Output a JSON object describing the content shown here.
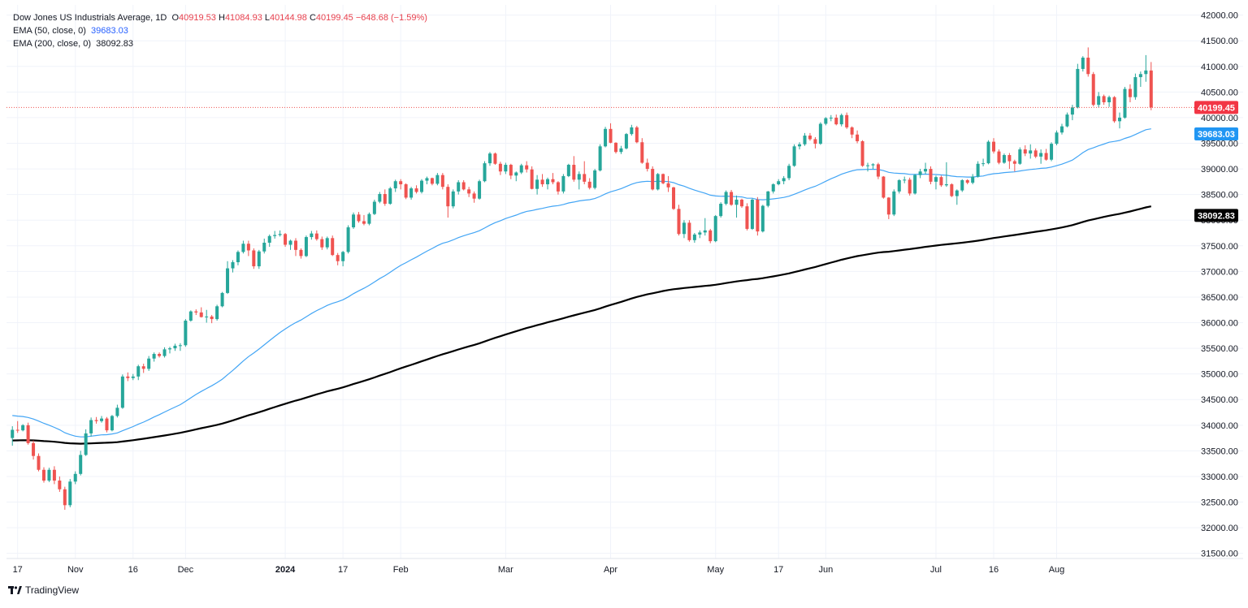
{
  "legend": {
    "title": "Dow Jones US Industrials Average, 1D",
    "open_key": "O",
    "open": "40919.53",
    "high_key": "H",
    "high": "41084.93",
    "low_key": "L",
    "low": "40144.98",
    "close_key": "C",
    "close": "40199.45",
    "change": "−648.68 (−1.59%)",
    "ema50_label": "EMA (50, close, 0)",
    "ema50_value": "39683.03",
    "ema200_label": "EMA (200, close, 0)",
    "ema200_value": "38092.83"
  },
  "brand": {
    "name": "TradingView"
  },
  "colors": {
    "up": "#26a69a",
    "down": "#ef5350",
    "ema50": "#42a5f5",
    "ema200": "#000000",
    "grid": "#f0f3fa",
    "last_price": "#ef5350"
  },
  "chart_data": {
    "type": "candlestick",
    "ylim": [
      31400,
      42200
    ],
    "yticks": [
      31500,
      32000,
      32500,
      33000,
      33500,
      34000,
      34500,
      35000,
      35500,
      36000,
      36500,
      37000,
      37500,
      38000,
      38500,
      39000,
      39500,
      40000,
      40500,
      41000,
      41500,
      42000
    ],
    "ytick_labels": [
      "31500.00",
      "32000.00",
      "32500.00",
      "33000.00",
      "33500.00",
      "34000.00",
      "34500.00",
      "35000.00",
      "35500.00",
      "36000.00",
      "36500.00",
      "37000.00",
      "37500.00",
      "38000.00",
      "38500.00",
      "39000.00",
      "39500.00",
      "40000.00",
      "40500.00",
      "41000.00",
      "41500.00",
      "42000.00"
    ],
    "xticks": [
      {
        "label": "17",
        "index": 1
      },
      {
        "label": "Nov",
        "index": 12
      },
      {
        "label": "16",
        "index": 23
      },
      {
        "label": "Dec",
        "index": 33
      },
      {
        "label": "2024",
        "index": 52,
        "bold": true
      },
      {
        "label": "17",
        "index": 63
      },
      {
        "label": "Feb",
        "index": 74
      },
      {
        "label": "Mar",
        "index": 94
      },
      {
        "label": "Apr",
        "index": 114
      },
      {
        "label": "May",
        "index": 134
      },
      {
        "label": "17",
        "index": 146
      },
      {
        "label": "Jun",
        "index": 155
      },
      {
        "label": "Jul",
        "index": 176
      },
      {
        "label": "16",
        "index": 187
      },
      {
        "label": "Aug",
        "index": 199
      }
    ],
    "price_labels": [
      {
        "name": "last-close",
        "value": 40199.45,
        "text": "40199.45",
        "bg": "#f23645",
        "fg": "#ffffff"
      },
      {
        "name": "ema50",
        "value": 39683.03,
        "text": "39683.03",
        "bg": "#2196f3",
        "fg": "#ffffff"
      },
      {
        "name": "ema200",
        "value": 38092.83,
        "text": "38092.83",
        "bg": "#000000",
        "fg": "#ffffff"
      }
    ],
    "candles": [
      [
        33750,
        33980,
        33600,
        33910
      ],
      [
        33910,
        34080,
        33850,
        33900
      ],
      [
        33900,
        34020,
        33880,
        34000
      ],
      [
        34000,
        34050,
        33620,
        33650
      ],
      [
        33650,
        33700,
        33330,
        33400
      ],
      [
        33400,
        33450,
        33100,
        33130
      ],
      [
        33130,
        33180,
        32880,
        32920
      ],
      [
        32920,
        33170,
        32890,
        33130
      ],
      [
        33130,
        33200,
        32850,
        32920
      ],
      [
        32920,
        33000,
        32700,
        32750
      ],
      [
        32750,
        32800,
        32350,
        32440
      ],
      [
        32440,
        32950,
        32400,
        32900
      ],
      [
        32900,
        33100,
        32850,
        33050
      ],
      [
        33050,
        33500,
        33020,
        33420
      ],
      [
        33420,
        33920,
        33400,
        33840
      ],
      [
        33840,
        34150,
        33780,
        34100
      ],
      [
        34100,
        34160,
        34030,
        34080
      ],
      [
        34080,
        34180,
        34050,
        34130
      ],
      [
        34130,
        34160,
        33860,
        33900
      ],
      [
        33900,
        34200,
        33880,
        34180
      ],
      [
        34180,
        34400,
        34150,
        34340
      ],
      [
        34340,
        34990,
        34320,
        34950
      ],
      [
        34950,
        35030,
        34860,
        34920
      ],
      [
        34920,
        35000,
        34880,
        34950
      ],
      [
        34950,
        35180,
        34880,
        35150
      ],
      [
        35150,
        35200,
        35020,
        35100
      ],
      [
        35100,
        35350,
        35060,
        35300
      ],
      [
        35300,
        35420,
        35240,
        35390
      ],
      [
        35390,
        35420,
        35320,
        35350
      ],
      [
        35350,
        35520,
        35320,
        35480
      ],
      [
        35480,
        35530,
        35400,
        35500
      ],
      [
        35500,
        35590,
        35450,
        35550
      ],
      [
        35550,
        35600,
        35450,
        35560
      ],
      [
        35560,
        36070,
        35530,
        36040
      ],
      [
        36040,
        36240,
        36020,
        36220
      ],
      [
        36220,
        36260,
        36150,
        36200
      ],
      [
        36200,
        36300,
        36100,
        36110
      ],
      [
        36110,
        36250,
        36000,
        36120
      ],
      [
        36120,
        36150,
        35990,
        36070
      ],
      [
        36070,
        36350,
        36040,
        36320
      ],
      [
        36320,
        36600,
        36300,
        36580
      ],
      [
        36580,
        37200,
        36560,
        37060
      ],
      [
        37060,
        37220,
        36980,
        37180
      ],
      [
        37180,
        37410,
        37120,
        37380
      ],
      [
        37380,
        37600,
        37350,
        37540
      ],
      [
        37540,
        37600,
        37300,
        37410
      ],
      [
        37410,
        37450,
        37050,
        37100
      ],
      [
        37100,
        37420,
        37050,
        37390
      ],
      [
        37390,
        37640,
        37350,
        37560
      ],
      [
        37560,
        37720,
        37480,
        37690
      ],
      [
        37690,
        37790,
        37640,
        37710
      ],
      [
        37710,
        37800,
        37680,
        37730
      ],
      [
        37730,
        37750,
        37480,
        37520
      ],
      [
        37520,
        37620,
        37420,
        37600
      ],
      [
        37600,
        37650,
        37300,
        37420
      ],
      [
        37420,
        37450,
        37250,
        37300
      ],
      [
        37300,
        37700,
        37280,
        37670
      ],
      [
        37670,
        37790,
        37620,
        37740
      ],
      [
        37740,
        37800,
        37600,
        37630
      ],
      [
        37630,
        37680,
        37420,
        37470
      ],
      [
        37470,
        37680,
        37430,
        37650
      ],
      [
        37650,
        37700,
        37300,
        37320
      ],
      [
        37320,
        37360,
        37120,
        37200
      ],
      [
        37200,
        37400,
        37100,
        37380
      ],
      [
        37380,
        37900,
        37350,
        37860
      ],
      [
        37860,
        38150,
        37830,
        38110
      ],
      [
        38110,
        38160,
        37950,
        37980
      ],
      [
        37980,
        38100,
        37900,
        37930
      ],
      [
        37930,
        38150,
        37900,
        38120
      ],
      [
        38120,
        38400,
        38100,
        38360
      ],
      [
        38360,
        38550,
        38330,
        38510
      ],
      [
        38510,
        38600,
        38280,
        38320
      ],
      [
        38320,
        38650,
        38300,
        38620
      ],
      [
        38620,
        38790,
        38550,
        38760
      ],
      [
        38760,
        38800,
        38600,
        38700
      ],
      [
        38700,
        38720,
        38410,
        38440
      ],
      [
        38440,
        38650,
        38400,
        38620
      ],
      [
        38620,
        38680,
        38520,
        38550
      ],
      [
        38550,
        38800,
        38520,
        38770
      ],
      [
        38770,
        38850,
        38700,
        38820
      ],
      [
        38820,
        38830,
        38680,
        38710
      ],
      [
        38710,
        38920,
        38680,
        38880
      ],
      [
        38880,
        38920,
        38600,
        38650
      ],
      [
        38650,
        38700,
        38050,
        38270
      ],
      [
        38270,
        38600,
        38230,
        38560
      ],
      [
        38560,
        38780,
        38500,
        38740
      ],
      [
        38740,
        38780,
        38580,
        38600
      ],
      [
        38600,
        38650,
        38450,
        38520
      ],
      [
        38520,
        38560,
        38340,
        38420
      ],
      [
        38420,
        38790,
        38400,
        38760
      ],
      [
        38760,
        39150,
        38740,
        39110
      ],
      [
        39110,
        39330,
        39060,
        39300
      ],
      [
        39300,
        39320,
        39080,
        39100
      ],
      [
        39100,
        39140,
        38880,
        38950
      ],
      [
        38950,
        39120,
        38900,
        39080
      ],
      [
        39080,
        39100,
        38800,
        38870
      ],
      [
        38870,
        38950,
        38760,
        38930
      ],
      [
        38930,
        39100,
        38900,
        39070
      ],
      [
        39070,
        39150,
        38930,
        38990
      ],
      [
        38990,
        39050,
        38600,
        38610
      ],
      [
        38610,
        38880,
        38500,
        38790
      ],
      [
        38790,
        38900,
        38650,
        38700
      ],
      [
        38700,
        38830,
        38600,
        38800
      ],
      [
        38800,
        38920,
        38700,
        38740
      ],
      [
        38740,
        38760,
        38500,
        38560
      ],
      [
        38560,
        38900,
        38520,
        38860
      ],
      [
        38860,
        39100,
        38840,
        39080
      ],
      [
        39080,
        39250,
        38750,
        38790
      ],
      [
        38790,
        38950,
        38600,
        38900
      ],
      [
        38900,
        39150,
        38700,
        38750
      ],
      [
        38750,
        38820,
        38600,
        38630
      ],
      [
        38630,
        39000,
        38600,
        38970
      ],
      [
        38970,
        39480,
        38950,
        39440
      ],
      [
        39440,
        39820,
        39420,
        39780
      ],
      [
        39780,
        39890,
        39500,
        39510
      ],
      [
        39510,
        39520,
        39300,
        39330
      ],
      [
        39330,
        39450,
        39290,
        39400
      ],
      [
        39400,
        39700,
        39380,
        39680
      ],
      [
        39680,
        39860,
        39650,
        39810
      ],
      [
        39810,
        39840,
        39500,
        39520
      ],
      [
        39520,
        39600,
        39100,
        39120
      ],
      [
        39120,
        39200,
        38950,
        39000
      ],
      [
        39000,
        39050,
        38580,
        38600
      ],
      [
        38600,
        38920,
        38580,
        38900
      ],
      [
        38900,
        38910,
        38700,
        38720
      ],
      [
        38720,
        38860,
        38550,
        38640
      ],
      [
        38640,
        38650,
        38200,
        38220
      ],
      [
        38220,
        38300,
        37700,
        37730
      ],
      [
        37730,
        38000,
        37650,
        37950
      ],
      [
        37950,
        38000,
        37580,
        37610
      ],
      [
        37610,
        37750,
        37560,
        37720
      ],
      [
        37720,
        37800,
        37650,
        37760
      ],
      [
        37760,
        38040,
        37700,
        37800
      ],
      [
        37800,
        37830,
        37550,
        37590
      ],
      [
        37590,
        38100,
        37570,
        38080
      ],
      [
        38080,
        38350,
        38050,
        38320
      ],
      [
        38320,
        38580,
        38290,
        38550
      ],
      [
        38550,
        38590,
        38280,
        38300
      ],
      [
        38300,
        38480,
        38050,
        38400
      ],
      [
        38400,
        38420,
        38240,
        38270
      ],
      [
        38270,
        38330,
        37800,
        37830
      ],
      [
        37830,
        38420,
        37810,
        38400
      ],
      [
        38400,
        38450,
        37700,
        37780
      ],
      [
        37780,
        38300,
        37760,
        38280
      ],
      [
        38280,
        38570,
        38250,
        38560
      ],
      [
        38560,
        38720,
        38520,
        38700
      ],
      [
        38700,
        38800,
        38680,
        38760
      ],
      [
        38760,
        38860,
        38700,
        38820
      ],
      [
        38820,
        39100,
        38780,
        39060
      ],
      [
        39060,
        39480,
        39040,
        39440
      ],
      [
        39440,
        39520,
        39380,
        39480
      ],
      [
        39480,
        39700,
        39450,
        39650
      ],
      [
        39650,
        39700,
        39550,
        39580
      ],
      [
        39580,
        39620,
        39400,
        39490
      ],
      [
        39490,
        39910,
        39470,
        39880
      ],
      [
        39880,
        40010,
        39850,
        39990
      ],
      [
        39990,
        40050,
        39930,
        40000
      ],
      [
        40000,
        40060,
        39850,
        39870
      ],
      [
        39870,
        40080,
        39830,
        40050
      ],
      [
        40050,
        40100,
        39780,
        39810
      ],
      [
        39810,
        39830,
        39600,
        39670
      ],
      [
        39670,
        39750,
        39500,
        39540
      ],
      [
        39540,
        39560,
        39040,
        39060
      ],
      [
        39060,
        39120,
        38950,
        39070
      ],
      [
        39070,
        39110,
        39000,
        39090
      ],
      [
        39090,
        39120,
        38800,
        38850
      ],
      [
        38850,
        38860,
        38420,
        38440
      ],
      [
        38440,
        38450,
        38020,
        38110
      ],
      [
        38110,
        38600,
        38080,
        38560
      ],
      [
        38560,
        38800,
        38520,
        38780
      ],
      [
        38780,
        38850,
        38720,
        38790
      ],
      [
        38790,
        38830,
        38480,
        38520
      ],
      [
        38520,
        38900,
        38500,
        38880
      ],
      [
        38880,
        39000,
        38820,
        38950
      ],
      [
        38950,
        39120,
        38900,
        39000
      ],
      [
        39000,
        39050,
        38700,
        38750
      ],
      [
        38750,
        38870,
        38600,
        38840
      ],
      [
        38840,
        38870,
        38650,
        38680
      ],
      [
        38680,
        39130,
        38650,
        38700
      ],
      [
        38700,
        38720,
        38450,
        38470
      ],
      [
        38470,
        38600,
        38300,
        38580
      ],
      [
        38580,
        38800,
        38550,
        38780
      ],
      [
        38780,
        38800,
        38700,
        38730
      ],
      [
        38730,
        38900,
        38700,
        38850
      ],
      [
        38850,
        39150,
        38830,
        39100
      ],
      [
        39100,
        39200,
        39050,
        39110
      ],
      [
        39110,
        39560,
        39090,
        39530
      ],
      [
        39530,
        39600,
        39300,
        39340
      ],
      [
        39340,
        39380,
        39090,
        39120
      ],
      [
        39120,
        39300,
        39100,
        39270
      ],
      [
        39270,
        39310,
        39000,
        39150
      ],
      [
        39150,
        39180,
        38950,
        39100
      ],
      [
        39100,
        39420,
        39080,
        39380
      ],
      [
        39380,
        39460,
        39250,
        39300
      ],
      [
        39300,
        39480,
        39200,
        39360
      ],
      [
        39360,
        39400,
        39210,
        39240
      ],
      [
        39240,
        39380,
        39100,
        39310
      ],
      [
        39310,
        39390,
        39160,
        39180
      ],
      [
        39180,
        39520,
        39150,
        39490
      ],
      [
        39490,
        39750,
        39460,
        39710
      ],
      [
        39710,
        39880,
        39670,
        39830
      ],
      [
        39830,
        40100,
        39810,
        40060
      ],
      [
        40060,
        40250,
        39950,
        40200
      ],
      [
        40200,
        41050,
        40180,
        40950
      ],
      [
        40950,
        41200,
        40900,
        41170
      ],
      [
        41170,
        41370,
        40800,
        40850
      ],
      [
        40850,
        40890,
        40220,
        40250
      ],
      [
        40250,
        40500,
        40200,
        40420
      ],
      [
        40420,
        40450,
        40250,
        40300
      ],
      [
        40300,
        40430,
        40210,
        40400
      ],
      [
        40400,
        40420,
        39900,
        39930
      ],
      [
        39930,
        40100,
        39790,
        40000
      ],
      [
        40000,
        40600,
        39980,
        40560
      ],
      [
        40560,
        40650,
        40300,
        40400
      ],
      [
        40400,
        40860,
        40350,
        40790
      ],
      [
        40790,
        40900,
        40600,
        40850
      ],
      [
        40850,
        41220,
        40700,
        40920
      ],
      [
        40919.53,
        41084.93,
        40144.98,
        40199.45
      ]
    ]
  }
}
